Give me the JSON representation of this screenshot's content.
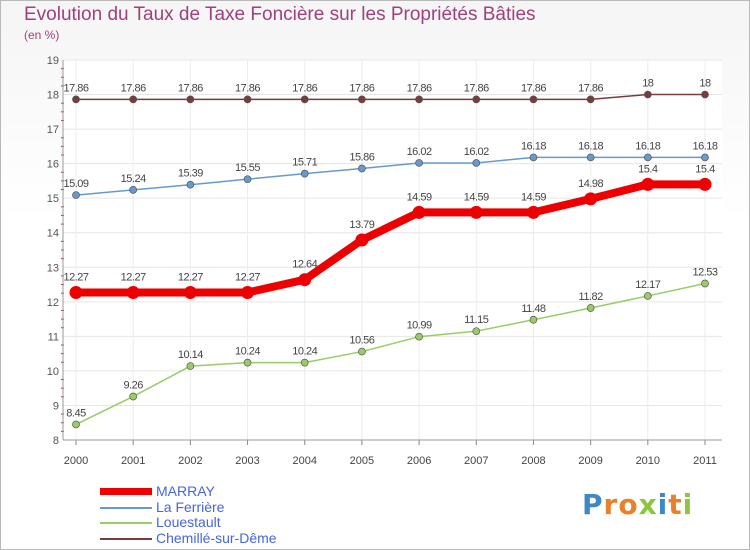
{
  "title": "Evolution du Taux de Taxe Foncière sur les Propriétés Bâties",
  "unit": "(en %)",
  "brand": {
    "text": "Proxiti",
    "letter_colors": [
      "#3e88c8",
      "#e8812a",
      "#e8812a",
      "#8cc63f",
      "#3e88c8",
      "#e8812a",
      "#8cc63f"
    ]
  },
  "chart_data": {
    "type": "line",
    "title": "Evolution du Taux de Taxe Foncière sur les Propriétés Bâties",
    "ylabel": "(en %)",
    "xlabel": "",
    "x": [
      "2000",
      "2001",
      "2002",
      "2003",
      "2004",
      "2005",
      "2006",
      "2007",
      "2008",
      "2009",
      "2010",
      "2011"
    ],
    "ylim": [
      8,
      19
    ],
    "yticks": [
      "8",
      "9",
      "10",
      "11",
      "12",
      "13",
      "14",
      "15",
      "16",
      "17",
      "18",
      "19"
    ],
    "grid": true,
    "legend_position": "bottom-left",
    "series": [
      {
        "name": "MARRAY",
        "color": "#ee0000",
        "values": [
          12.27,
          12.27,
          12.27,
          12.27,
          12.64,
          13.79,
          14.59,
          14.59,
          14.59,
          14.98,
          15.4,
          15.4
        ],
        "labels": [
          "12.27",
          "12.27",
          "12.27",
          "12.27",
          "12.64",
          "13.79",
          "14.59",
          "14.59",
          "14.59",
          "14.98",
          "15.4",
          "15.4"
        ]
      },
      {
        "name": "La Ferrière",
        "color": "#6699cc",
        "values": [
          15.09,
          15.24,
          15.39,
          15.55,
          15.71,
          15.86,
          16.02,
          16.02,
          16.18,
          16.18,
          16.18,
          16.18
        ],
        "labels": [
          "15.09",
          "15.24",
          "15.39",
          "15.55",
          "15.71",
          "15.86",
          "16.02",
          "16.02",
          "16.18",
          "16.18",
          "16.18",
          "16.18"
        ]
      },
      {
        "name": "Louestault",
        "color": "#99cc66",
        "values": [
          8.45,
          9.26,
          10.14,
          10.24,
          10.24,
          10.56,
          10.99,
          11.15,
          11.48,
          11.82,
          12.17,
          12.53
        ],
        "labels": [
          "8.45",
          "9.26",
          "10.14",
          "10.24",
          "10.24",
          "10.56",
          "10.99",
          "11.15",
          "11.48",
          "11.82",
          "12.17",
          "12.53"
        ]
      },
      {
        "name": "Chemillé-sur-Dême",
        "color": "#7a3b3b",
        "values": [
          17.86,
          17.86,
          17.86,
          17.86,
          17.86,
          17.86,
          17.86,
          17.86,
          17.86,
          17.86,
          18,
          18
        ],
        "labels": [
          "17.86",
          "17.86",
          "17.86",
          "17.86",
          "17.86",
          "17.86",
          "17.86",
          "17.86",
          "17.86",
          "17.86",
          "18",
          "18"
        ]
      }
    ]
  }
}
